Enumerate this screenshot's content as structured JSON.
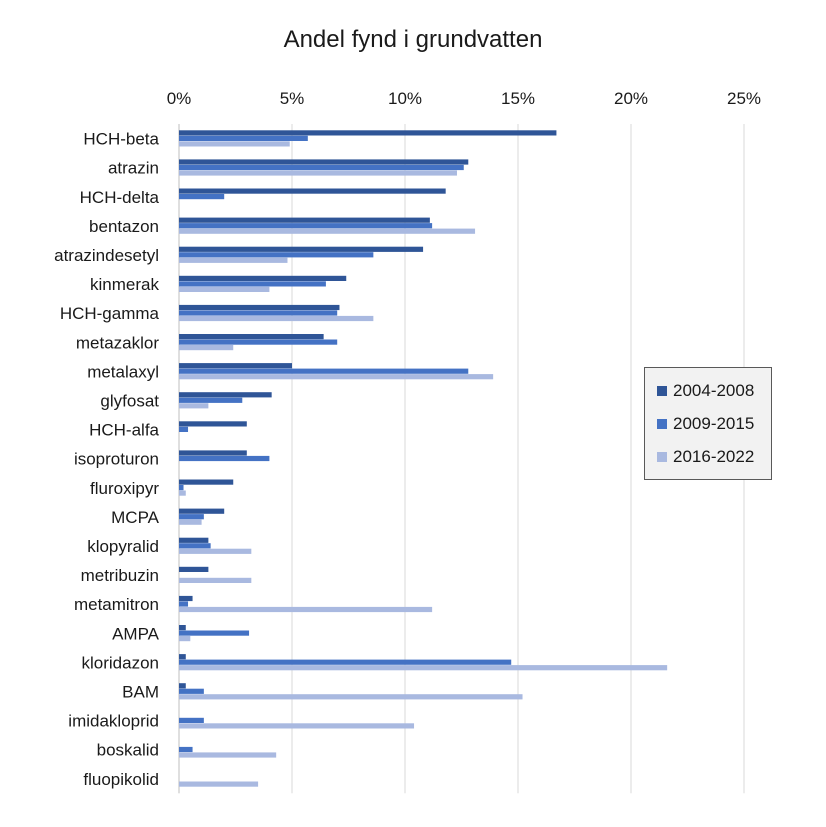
{
  "chart_data": {
    "type": "bar",
    "orientation": "horizontal",
    "title": "Andel fynd i grundvatten",
    "xlim": [
      0,
      25
    ],
    "xticks": [
      0,
      5,
      10,
      15,
      20,
      25
    ],
    "tick_suffix": "%",
    "grid": true,
    "legend_position": "right",
    "categories": [
      "HCH-beta",
      "atrazin",
      "HCH-delta",
      "bentazon",
      "atrazindesetyl",
      "kinmerak",
      "HCH-gamma",
      "metazaklor",
      "metalaxyl",
      "glyfosat",
      "HCH-alfa",
      "isoproturon",
      "fluroxipyr",
      "MCPA",
      "klopyralid",
      "metribuzin",
      "metamitron",
      "AMPA",
      "kloridazon",
      "BAM",
      "imidakloprid",
      "boskalid",
      "fluopikolid"
    ],
    "series": [
      {
        "name": "2004-2008",
        "color": "#2f5597",
        "values": [
          16.7,
          12.8,
          11.8,
          11.1,
          10.8,
          7.4,
          7.1,
          6.4,
          5.0,
          4.1,
          3.0,
          3.0,
          2.4,
          2.0,
          1.3,
          1.3,
          0.6,
          0.3,
          0.3,
          0.3,
          null,
          null,
          null
        ]
      },
      {
        "name": "2009-2015",
        "color": "#4472c4",
        "values": [
          5.7,
          12.6,
          2.0,
          11.2,
          8.6,
          6.5,
          7.0,
          7.0,
          12.8,
          2.8,
          0.4,
          4.0,
          0.2,
          1.1,
          1.4,
          null,
          0.4,
          3.1,
          14.7,
          1.1,
          1.1,
          0.6,
          null
        ]
      },
      {
        "name": "2016-2022",
        "color": "#a9b9e0",
        "values": [
          4.9,
          12.3,
          null,
          13.1,
          4.8,
          4.0,
          8.6,
          2.4,
          13.9,
          1.3,
          null,
          null,
          0.3,
          1.0,
          3.2,
          3.2,
          11.2,
          0.5,
          21.6,
          15.2,
          10.4,
          4.3,
          3.5
        ]
      }
    ]
  }
}
